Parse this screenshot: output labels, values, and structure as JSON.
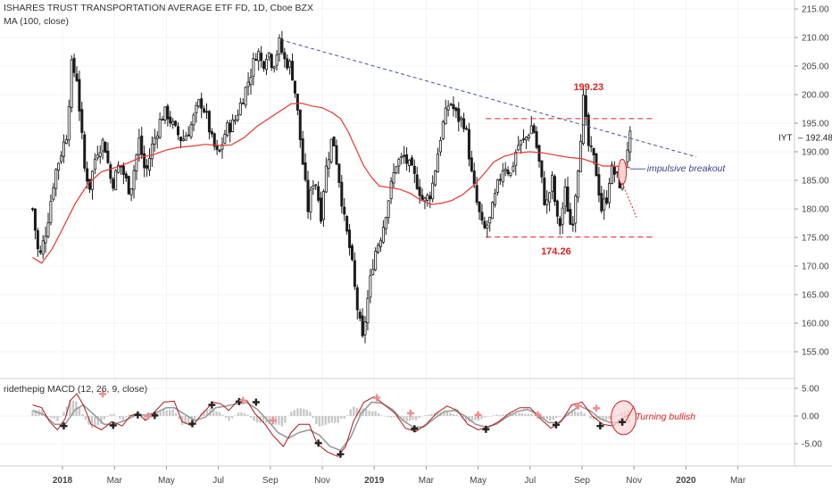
{
  "chart_data": {
    "type": "candlestick",
    "title": "ISHARES TRUST TRANSPORTATION AVERAGE ETF FD, 1D, Cboe BZX",
    "indicator_label": "MA (100, close)",
    "ticker": "IYT",
    "last_price": "192.48",
    "colors": {
      "candle": "#1b1b1b",
      "ma": "#e8362d",
      "trendline": "#4a4f9c",
      "level": "#e02020",
      "annotation_red": "#e02020",
      "annotation_blue": "#3a4490",
      "grid": "#f0f3f8",
      "price_tag_bg": "#ffffff",
      "macd_fast": "#b01818",
      "macd_slow": "#9a9a9a",
      "histogram": "#c8c8c8",
      "bull_cross": "#222222",
      "bear_cross": "#f28b8b",
      "bullish_circle_fill": "#fbd5d5",
      "bullish_circle_stroke": "#d32020"
    },
    "time_axis": {
      "ticks": [
        {
          "label": "2018",
          "t": 0,
          "bold": true
        },
        {
          "label": "Mar",
          "t": 2
        },
        {
          "label": "May",
          "t": 4
        },
        {
          "label": "Jul",
          "t": 6
        },
        {
          "label": "Sep",
          "t": 8
        },
        {
          "label": "Nov",
          "t": 10
        },
        {
          "label": "2019",
          "t": 12,
          "bold": true
        },
        {
          "label": "Mar",
          "t": 14
        },
        {
          "label": "May",
          "t": 16
        },
        {
          "label": "Jul",
          "t": 18
        },
        {
          "label": "Sep",
          "t": 20
        },
        {
          "label": "Nov",
          "t": 22
        },
        {
          "label": "2020",
          "t": 24,
          "bold": true
        },
        {
          "label": "Mar",
          "t": 26
        }
      ]
    },
    "price_axis": {
      "range": [
        150,
        215
      ],
      "ticks": [
        "215.00",
        "210.00",
        "205.00",
        "200.00",
        "195.00",
        "190.00",
        "185.00",
        "180.00",
        "175.00",
        "170.00",
        "165.00",
        "160.00",
        "155.00"
      ]
    },
    "price_path": [
      [
        -1.15,
        180
      ],
      [
        -0.9,
        171
      ],
      [
        -0.6,
        177
      ],
      [
        -0.3,
        186
      ],
      [
        0.15,
        193
      ],
      [
        0.35,
        205
      ],
      [
        0.55,
        203
      ],
      [
        0.85,
        187
      ],
      [
        1.05,
        184
      ],
      [
        1.3,
        190
      ],
      [
        1.6,
        192
      ],
      [
        1.9,
        184
      ],
      [
        2.2,
        188
      ],
      [
        2.6,
        183
      ],
      [
        2.95,
        192
      ],
      [
        3.2,
        186
      ],
      [
        3.45,
        191
      ],
      [
        3.8,
        196
      ],
      [
        4.0,
        197
      ],
      [
        4.3,
        194
      ],
      [
        4.6,
        192
      ],
      [
        4.9,
        194
      ],
      [
        5.3,
        199
      ],
      [
        5.5,
        197
      ],
      [
        5.75,
        192
      ],
      [
        6.0,
        189
      ],
      [
        6.3,
        194
      ],
      [
        6.6,
        195
      ],
      [
        6.9,
        199
      ],
      [
        7.2,
        203
      ],
      [
        7.5,
        208
      ],
      [
        7.7,
        205
      ],
      [
        7.9,
        208
      ],
      [
        8.1,
        205
      ],
      [
        8.35,
        209
      ],
      [
        8.55,
        206
      ],
      [
        8.8,
        205
      ],
      [
        9.0,
        199
      ],
      [
        9.2,
        190
      ],
      [
        9.45,
        180
      ],
      [
        9.7,
        186
      ],
      [
        9.95,
        179
      ],
      [
        10.1,
        186
      ],
      [
        10.4,
        193
      ],
      [
        10.6,
        187
      ],
      [
        10.85,
        178
      ],
      [
        11.1,
        172
      ],
      [
        11.3,
        164
      ],
      [
        11.55,
        157
      ],
      [
        11.8,
        166
      ],
      [
        12.0,
        172
      ],
      [
        12.3,
        176
      ],
      [
        12.6,
        183
      ],
      [
        12.85,
        188
      ],
      [
        13.15,
        189
      ],
      [
        13.4,
        187
      ],
      [
        13.7,
        184
      ],
      [
        13.9,
        181
      ],
      [
        14.2,
        183
      ],
      [
        14.6,
        194
      ],
      [
        14.9,
        199
      ],
      [
        15.2,
        196
      ],
      [
        15.5,
        195
      ],
      [
        15.75,
        186
      ],
      [
        15.95,
        181
      ],
      [
        16.2,
        176
      ],
      [
        16.45,
        178
      ],
      [
        16.75,
        184
      ],
      [
        17.0,
        188
      ],
      [
        17.25,
        186
      ],
      [
        17.5,
        191
      ],
      [
        17.8,
        192
      ],
      [
        18.1,
        195
      ],
      [
        18.35,
        188
      ],
      [
        18.6,
        180
      ],
      [
        18.85,
        185
      ],
      [
        19.1,
        176
      ],
      [
        19.35,
        183
      ],
      [
        19.6,
        176
      ],
      [
        19.9,
        190
      ],
      [
        20.05,
        199
      ],
      [
        20.25,
        191
      ],
      [
        20.5,
        188
      ],
      [
        20.75,
        180
      ],
      [
        20.95,
        182
      ],
      [
        21.1,
        187
      ],
      [
        21.3,
        186
      ],
      [
        21.5,
        184
      ],
      [
        21.7,
        190
      ],
      [
        21.85,
        192.5
      ]
    ],
    "ma_path": [
      [
        -1.15,
        171.5
      ],
      [
        -0.8,
        170.5
      ],
      [
        -0.4,
        173
      ],
      [
        0,
        176.5
      ],
      [
        0.5,
        181
      ],
      [
        1.0,
        184.5
      ],
      [
        1.5,
        186.5
      ],
      [
        2.0,
        187.2
      ],
      [
        2.5,
        188
      ],
      [
        3.0,
        189
      ],
      [
        3.5,
        189.5
      ],
      [
        4.0,
        190.3
      ],
      [
        4.5,
        190.8
      ],
      [
        5.0,
        191
      ],
      [
        5.5,
        191.3
      ],
      [
        6.0,
        191.1
      ],
      [
        6.5,
        191.2
      ],
      [
        7.0,
        192.5
      ],
      [
        7.5,
        194.5
      ],
      [
        8.0,
        196
      ],
      [
        8.5,
        197.5
      ],
      [
        8.8,
        198.4
      ],
      [
        9.2,
        198.5
      ],
      [
        9.6,
        198
      ],
      [
        10.0,
        197.7
      ],
      [
        10.4,
        196.8
      ],
      [
        10.7,
        195.8
      ],
      [
        11.0,
        193.5
      ],
      [
        11.3,
        190.5
      ],
      [
        11.6,
        187.5
      ],
      [
        11.9,
        185.5
      ],
      [
        12.2,
        184
      ],
      [
        12.5,
        183.8
      ],
      [
        13.0,
        183.4
      ],
      [
        13.4,
        182.7
      ],
      [
        13.8,
        181.5
      ],
      [
        14.2,
        180.8
      ],
      [
        14.6,
        181
      ],
      [
        15.0,
        181.5
      ],
      [
        15.4,
        182.5
      ],
      [
        15.8,
        184
      ],
      [
        16.2,
        186
      ],
      [
        16.6,
        188.2
      ],
      [
        17.0,
        189.2
      ],
      [
        17.5,
        189.8
      ],
      [
        18.0,
        190
      ],
      [
        18.5,
        189.8
      ],
      [
        19.0,
        189.4
      ],
      [
        19.5,
        189
      ],
      [
        20.0,
        188.8
      ],
      [
        20.4,
        188.2
      ],
      [
        20.8,
        187.5
      ],
      [
        21.2,
        187.5
      ],
      [
        21.85,
        187.2
      ]
    ],
    "trendline": {
      "from": [
        8.4,
        209.6
      ],
      "to": [
        24.4,
        189.1
      ]
    },
    "levels": [
      {
        "name": "resistance",
        "price": 195.8,
        "from": 16.3,
        "to": 22.75
      },
      {
        "name": "support",
        "price": 175.1,
        "from": 16.3,
        "to": 22.75
      }
    ],
    "annotations": [
      {
        "text": "199.23",
        "t": 20.25,
        "price": 200.8,
        "style": "red-bold"
      },
      {
        "text": "174.26",
        "t": 19.0,
        "price": 172.0,
        "style": "red-bold"
      },
      {
        "text": "impulsive breakout",
        "t": 22.5,
        "price": 186.6,
        "style": "blue-italic"
      },
      {
        "text": "Turning bullish",
        "t": 22.05,
        "value": 0.0,
        "style": "red-italic"
      }
    ],
    "macd": {
      "label": "ridethepig MACD (12, 26, 9, close)",
      "range": [
        -8,
        6
      ],
      "ticks": [
        "5.00",
        "0.00",
        "-5.00"
      ],
      "fast_path": [
        [
          -1.15,
          2
        ],
        [
          -0.8,
          1.5
        ],
        [
          -0.5,
          -1
        ],
        [
          -0.2,
          -2.5
        ],
        [
          0.1,
          -0.5
        ],
        [
          0.3,
          2.8
        ],
        [
          0.55,
          4
        ],
        [
          0.8,
          2
        ],
        [
          1.1,
          -1.5
        ],
        [
          1.5,
          -2.5
        ],
        [
          1.9,
          -1
        ],
        [
          2.3,
          -1.8
        ],
        [
          2.6,
          0
        ],
        [
          2.9,
          0.5
        ],
        [
          3.2,
          -0.8
        ],
        [
          3.5,
          0.5
        ],
        [
          3.9,
          2.5
        ],
        [
          4.3,
          2.7
        ],
        [
          4.6,
          -1
        ],
        [
          5.0,
          -1.8
        ],
        [
          5.4,
          0.5
        ],
        [
          5.8,
          2.5
        ],
        [
          6.1,
          2.2
        ],
        [
          6.4,
          1
        ],
        [
          6.8,
          3
        ],
        [
          7.1,
          2.8
        ],
        [
          7.4,
          0.5
        ],
        [
          7.8,
          -1.5
        ],
        [
          8.1,
          -3.5
        ],
        [
          8.5,
          -5.5
        ],
        [
          8.8,
          -3
        ],
        [
          9.1,
          -1.5
        ],
        [
          9.5,
          -1.5
        ],
        [
          9.8,
          -5
        ],
        [
          10.2,
          -6.5
        ],
        [
          10.6,
          -7.3
        ],
        [
          10.9,
          -5.5
        ],
        [
          11.2,
          -1
        ],
        [
          11.6,
          2.5
        ],
        [
          12.0,
          3.5
        ],
        [
          12.4,
          2
        ],
        [
          12.8,
          0.5
        ],
        [
          13.2,
          -2.2
        ],
        [
          13.6,
          -2.8
        ],
        [
          14.0,
          -1.5
        ],
        [
          14.4,
          0.5
        ],
        [
          14.8,
          1.8
        ],
        [
          15.2,
          1
        ],
        [
          15.6,
          -1.5
        ],
        [
          16.0,
          -2.5
        ],
        [
          16.4,
          -2
        ],
        [
          16.8,
          -1
        ],
        [
          17.2,
          0.5
        ],
        [
          17.6,
          1.5
        ],
        [
          18.0,
          1.5
        ],
        [
          18.4,
          -0.5
        ],
        [
          18.8,
          -2.2
        ],
        [
          19.2,
          -1
        ],
        [
          19.6,
          2
        ],
        [
          20.0,
          2.5
        ],
        [
          20.4,
          0
        ],
        [
          20.8,
          -1.5
        ],
        [
          21.2,
          -1.8
        ],
        [
          21.5,
          -0.5
        ],
        [
          21.85,
          0.3
        ]
      ],
      "slow_path": [
        [
          -1.15,
          1
        ],
        [
          -0.7,
          0.2
        ],
        [
          -0.3,
          -1.5
        ],
        [
          0.1,
          -1.5
        ],
        [
          0.5,
          1.2
        ],
        [
          0.8,
          2
        ],
        [
          1.2,
          0.3
        ],
        [
          1.6,
          -1.5
        ],
        [
          2.0,
          -1.5
        ],
        [
          2.4,
          -0.8
        ],
        [
          2.8,
          0.1
        ],
        [
          3.2,
          0.2
        ],
        [
          3.6,
          0.6
        ],
        [
          4.0,
          1.5
        ],
        [
          4.3,
          1.5
        ],
        [
          4.7,
          0.3
        ],
        [
          5.1,
          -0.8
        ],
        [
          5.5,
          -0.2
        ],
        [
          5.9,
          1.5
        ],
        [
          6.3,
          1.8
        ],
        [
          6.7,
          2.2
        ],
        [
          7.1,
          2.4
        ],
        [
          7.5,
          1.2
        ],
        [
          7.9,
          -0.8
        ],
        [
          8.3,
          -3
        ],
        [
          8.7,
          -4
        ],
        [
          9.1,
          -3
        ],
        [
          9.5,
          -2.5
        ],
        [
          9.9,
          -3.5
        ],
        [
          10.3,
          -5.5
        ],
        [
          10.7,
          -6.2
        ],
        [
          11.1,
          -3.8
        ],
        [
          11.5,
          0.5
        ],
        [
          11.9,
          2.5
        ],
        [
          12.3,
          2.3
        ],
        [
          12.7,
          1.2
        ],
        [
          13.1,
          -0.8
        ],
        [
          13.5,
          -2
        ],
        [
          13.9,
          -2
        ],
        [
          14.3,
          -0.5
        ],
        [
          14.7,
          0.8
        ],
        [
          15.1,
          1
        ],
        [
          15.5,
          0
        ],
        [
          15.9,
          -1.5
        ],
        [
          16.3,
          -2
        ],
        [
          16.7,
          -1.5
        ],
        [
          17.1,
          -0.2
        ],
        [
          17.5,
          0.8
        ],
        [
          17.9,
          1.2
        ],
        [
          18.3,
          0.3
        ],
        [
          18.7,
          -1.2
        ],
        [
          19.1,
          -1.2
        ],
        [
          19.5,
          0.5
        ],
        [
          19.9,
          1.8
        ],
        [
          20.3,
          1
        ],
        [
          20.7,
          -0.5
        ],
        [
          21.1,
          -1.2
        ],
        [
          21.5,
          -1.2
        ],
        [
          21.85,
          -0.8
        ]
      ],
      "bull_crosses": [
        [
          0.05,
          -1.8
        ],
        [
          1.95,
          -1.7
        ],
        [
          2.9,
          0.2
        ],
        [
          3.55,
          0.1
        ],
        [
          5.0,
          -1.4
        ],
        [
          5.75,
          2.0
        ],
        [
          6.8,
          2.6
        ],
        [
          7.45,
          2.5
        ],
        [
          9.85,
          -4.9
        ],
        [
          10.7,
          -6.9
        ],
        [
          13.55,
          -2.3
        ],
        [
          16.3,
          -2.4
        ],
        [
          19.0,
          -1.6
        ],
        [
          20.7,
          -1.8
        ],
        [
          21.55,
          -1.1
        ]
      ],
      "bear_crosses": [
        [
          1.55,
          4.0
        ],
        [
          3.3,
          0.0
        ],
        [
          6.95,
          2.8
        ],
        [
          8.1,
          -0.8
        ],
        [
          12.1,
          3.3
        ],
        [
          13.4,
          0.5
        ],
        [
          16.0,
          0.2
        ],
        [
          18.3,
          0.2
        ],
        [
          19.85,
          1.8
        ],
        [
          20.55,
          1.4
        ]
      ]
    }
  }
}
